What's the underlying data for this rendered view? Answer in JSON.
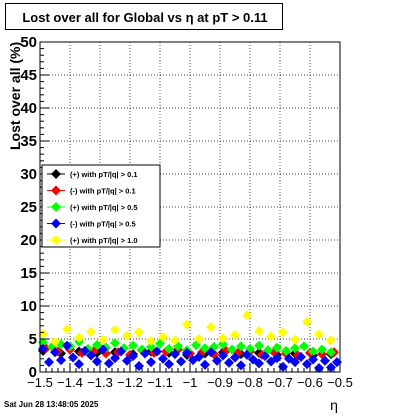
{
  "chart_data": {
    "type": "scatter",
    "title": "Lost over all for Global vs    η at pT > 0.11",
    "xlabel": "η",
    "ylabel": "Lost over all (%)",
    "xlim": [
      -1.5,
      -0.5
    ],
    "ylim": [
      0,
      50
    ],
    "x_ticks": [
      "−1.5",
      "−1.4",
      "−1.3",
      "−1.2",
      "−1.1",
      "−1",
      "−0.9",
      "−0.8",
      "−0.7",
      "−0.6",
      "−0.5"
    ],
    "y_ticks": [
      "0",
      "5",
      "10",
      "15",
      "20",
      "25",
      "30",
      "35",
      "40",
      "45",
      "50"
    ],
    "grid": true,
    "legend_position": "left-middle",
    "series": [
      {
        "name": "(+) with pT/|q| > 0.1",
        "color": "#000000",
        "marker": "diamond",
        "x": [
          -1.49,
          -1.43,
          -1.37,
          -1.31,
          -1.25,
          -1.19,
          -1.13,
          -1.07,
          -1.01,
          -0.95,
          -0.89,
          -0.83,
          -0.77,
          -0.71,
          -0.65,
          -0.59,
          -0.53
        ],
        "y": [
          3.2,
          2.8,
          3.1,
          2.9,
          3.0,
          2.7,
          3.1,
          2.9,
          2.6,
          2.8,
          3.0,
          2.7,
          2.9,
          2.6,
          2.8,
          2.5,
          2.7
        ]
      },
      {
        "name": "(-) with pT/|q| > 0.1",
        "color": "#ff0000",
        "marker": "diamond",
        "x": [
          -1.48,
          -1.44,
          -1.4,
          -1.36,
          -1.32,
          -1.28,
          -1.24,
          -1.2,
          -1.16,
          -1.12,
          -1.08,
          -1.04,
          -1.0,
          -0.96,
          -0.92,
          -0.88,
          -0.84,
          -0.8,
          -0.76,
          -0.72,
          -0.68,
          -0.64,
          -0.6,
          -0.56,
          -0.52
        ],
        "y": [
          3.6,
          3.1,
          3.4,
          2.9,
          3.2,
          2.8,
          3.0,
          2.6,
          3.3,
          2.9,
          3.1,
          3.4,
          2.8,
          3.0,
          2.7,
          3.2,
          2.9,
          3.1,
          2.6,
          3.0,
          2.8,
          2.5,
          2.9,
          2.7,
          3.0
        ]
      },
      {
        "name": "(+) with pT/|q| > 0.5",
        "color": "#00ff00",
        "marker": "diamond",
        "x": [
          -1.49,
          -1.46,
          -1.43,
          -1.4,
          -1.37,
          -1.34,
          -1.31,
          -1.28,
          -1.25,
          -1.22,
          -1.19,
          -1.16,
          -1.13,
          -1.1,
          -1.07,
          -1.04,
          -1.01,
          -0.98,
          -0.95,
          -0.92,
          -0.89,
          -0.86,
          -0.83,
          -0.8,
          -0.77,
          -0.74,
          -0.71,
          -0.68,
          -0.65,
          -0.62,
          -0.59,
          -0.56,
          -0.53
        ],
        "y": [
          4.5,
          3.8,
          4.2,
          3.9,
          4.6,
          3.5,
          4.1,
          3.7,
          4.4,
          3.6,
          4.0,
          3.4,
          3.8,
          4.3,
          3.5,
          3.9,
          3.3,
          4.1,
          3.6,
          3.8,
          4.2,
          3.4,
          3.9,
          3.5,
          4.0,
          3.3,
          3.7,
          3.2,
          3.6,
          3.9,
          3.1,
          3.4,
          3.0
        ]
      },
      {
        "name": "(-) with pT/|q| > 0.5",
        "color": "#0000ff",
        "marker": "diamond",
        "x": [
          -1.49,
          -1.47,
          -1.45,
          -1.43,
          -1.41,
          -1.39,
          -1.37,
          -1.35,
          -1.33,
          -1.31,
          -1.29,
          -1.27,
          -1.25,
          -1.23,
          -1.21,
          -1.19,
          -1.17,
          -1.15,
          -1.13,
          -1.11,
          -1.09,
          -1.07,
          -1.05,
          -1.03,
          -1.01,
          -0.99,
          -0.97,
          -0.95,
          -0.93,
          -0.91,
          -0.89,
          -0.87,
          -0.85,
          -0.83,
          -0.81,
          -0.79,
          -0.77,
          -0.75,
          -0.73,
          -0.71,
          -0.69,
          -0.67,
          -0.65,
          -0.63,
          -0.61,
          -0.59,
          -0.57,
          -0.55,
          -0.53,
          -0.51
        ],
        "y": [
          3.5,
          1.5,
          3.0,
          1.8,
          4.0,
          2.2,
          1.2,
          3.2,
          2.5,
          1.6,
          3.4,
          1.3,
          2.1,
          3.1,
          1.7,
          2.4,
          0.9,
          2.8,
          1.5,
          3.1,
          2.0,
          1.2,
          2.7,
          1.6,
          2.9,
          1.8,
          2.3,
          1.1,
          3.0,
          1.7,
          2.5,
          1.4,
          2.2,
          1.0,
          2.6,
          1.9,
          1.3,
          2.4,
          1.6,
          2.1,
          0.8,
          2.0,
          1.5,
          2.3,
          1.2,
          1.9,
          0.6,
          1.7,
          0.7,
          1.5
        ]
      },
      {
        "name": "(+) with pT/|q| > 1.0",
        "color": "#ffff00",
        "marker": "diamond",
        "x": [
          -1.49,
          -1.45,
          -1.41,
          -1.37,
          -1.33,
          -1.29,
          -1.25,
          -1.21,
          -1.17,
          -1.13,
          -1.09,
          -1.05,
          -1.01,
          -0.97,
          -0.93,
          -0.89,
          -0.85,
          -0.81,
          -0.77,
          -0.73,
          -0.69,
          -0.65,
          -0.61,
          -0.57,
          -0.53
        ],
        "y": [
          5.8,
          4.6,
          6.5,
          5.2,
          6.1,
          4.9,
          6.4,
          5.5,
          6.0,
          4.7,
          5.3,
          4.8,
          7.2,
          5.0,
          6.8,
          5.1,
          5.6,
          8.6,
          6.2,
          5.4,
          6.0,
          4.9,
          7.6,
          5.7,
          4.8
        ]
      }
    ]
  },
  "footer": {
    "timestamp": "Sat Jun 28 13:48:05 2025"
  }
}
